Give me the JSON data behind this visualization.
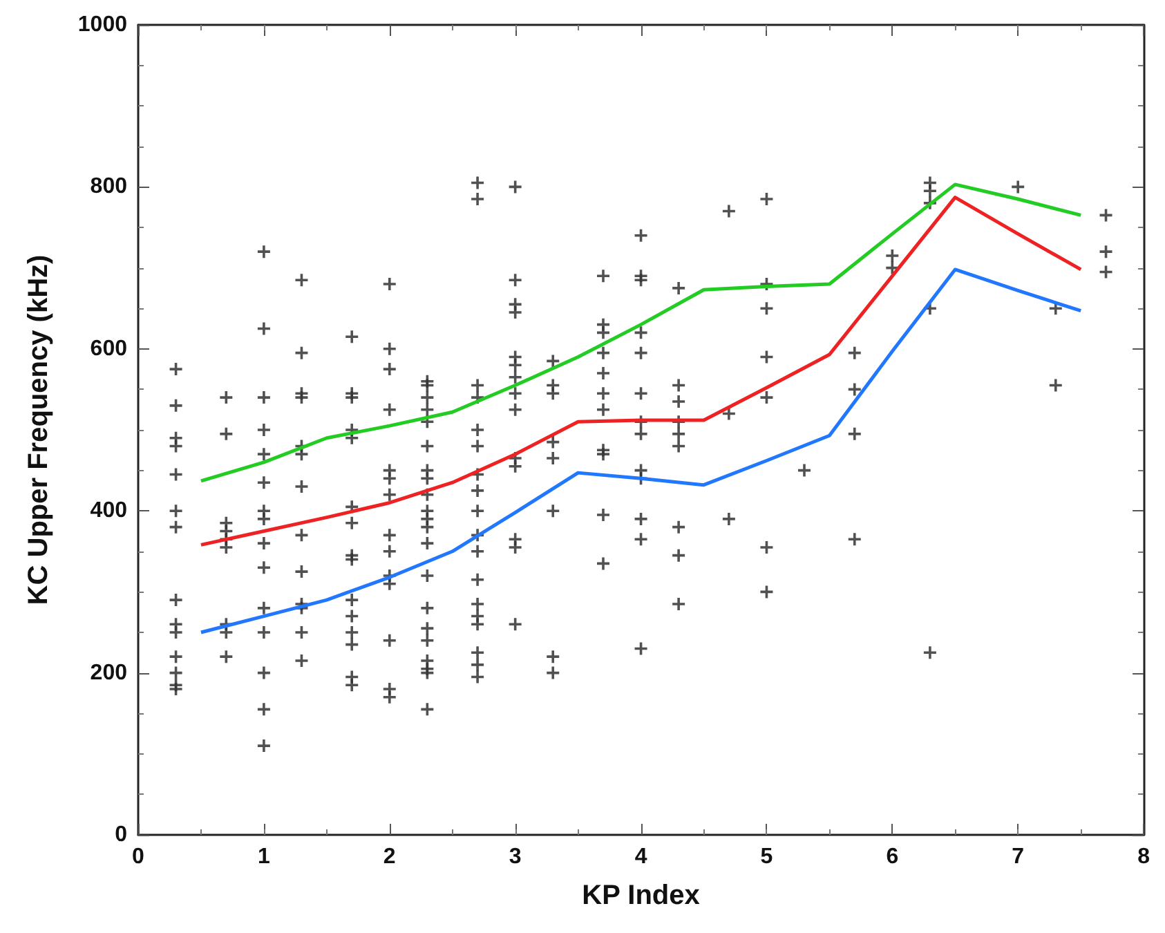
{
  "chart_data": {
    "type": "scatter",
    "xlabel": "KP Index",
    "ylabel": "KC Upper Frequency (kHz)",
    "xlim": [
      0,
      8
    ],
    "xticks": [
      0,
      1,
      2,
      3,
      4,
      5,
      6,
      7,
      8
    ],
    "ylim": [
      0,
      1000
    ],
    "yticks": [
      0,
      200,
      400,
      600,
      800,
      1000
    ],
    "grid": false,
    "series": [
      {
        "marker": "cross",
        "color": "#333333",
        "x": [
          0.3,
          0.3,
          0.3,
          0.3,
          0.3,
          0.3,
          0.3,
          0.3,
          0.3,
          0.3,
          0.3,
          0.3,
          0.3,
          0.3,
          0.7,
          0.7,
          0.7,
          0.7,
          0.7,
          0.7,
          0.7,
          0.7,
          0.7,
          1,
          1,
          1,
          1,
          1,
          1,
          1,
          1,
          1,
          1,
          1,
          1,
          1,
          1,
          1,
          1.3,
          1.3,
          1.3,
          1.3,
          1.3,
          1.3,
          1.3,
          1.3,
          1.3,
          1.3,
          1.3,
          1.3,
          1.3,
          1.7,
          1.7,
          1.7,
          1.7,
          1.7,
          1.7,
          1.7,
          1.7,
          1.7,
          1.7,
          1.7,
          1.7,
          1.7,
          1.7,
          1.7,
          2,
          2,
          2,
          2,
          2,
          2,
          2,
          2,
          2,
          2,
          2,
          2,
          2,
          2,
          2.3,
          2.3,
          2.3,
          2.3,
          2.3,
          2.3,
          2.3,
          2.3,
          2.3,
          2.3,
          2.3,
          2.3,
          2.3,
          2.3,
          2.3,
          2.3,
          2.3,
          2.3,
          2.3,
          2.3,
          2.3,
          2.7,
          2.7,
          2.7,
          2.7,
          2.7,
          2.7,
          2.7,
          2.7,
          2.7,
          2.7,
          2.7,
          2.7,
          2.7,
          2.7,
          2.7,
          2.7,
          2.7,
          2.7,
          3,
          3,
          3,
          3,
          3,
          3,
          3,
          3,
          3,
          3,
          3,
          3,
          3,
          3,
          3.3,
          3.3,
          3.3,
          3.3,
          3.3,
          3.3,
          3.3,
          3.3,
          3.7,
          3.7,
          3.7,
          3.7,
          3.7,
          3.7,
          3.7,
          3.7,
          3.7,
          3.7,
          3.7,
          4,
          4,
          4,
          4,
          4,
          4,
          4,
          4,
          4,
          4,
          4,
          4,
          4,
          4.3,
          4.3,
          4.3,
          4.3,
          4.3,
          4.3,
          4.3,
          4.3,
          4.3,
          4.7,
          4.7,
          4.7,
          5,
          5,
          5,
          5,
          5,
          5,
          5,
          5.3,
          5.7,
          5.7,
          5.7,
          5.7,
          6,
          6,
          6.3,
          6.3,
          6.3,
          6.3,
          6.3,
          7,
          7.3,
          7.3,
          7.7,
          7.7,
          7.7
        ],
        "values": [
          575,
          530,
          490,
          480,
          445,
          400,
          380,
          290,
          260,
          250,
          220,
          200,
          185,
          180,
          540,
          495,
          385,
          375,
          365,
          355,
          260,
          250,
          220,
          720,
          625,
          540,
          500,
          470,
          435,
          400,
          390,
          360,
          330,
          280,
          250,
          200,
          155,
          110,
          685,
          595,
          545,
          540,
          480,
          470,
          430,
          370,
          325,
          285,
          280,
          250,
          215,
          615,
          545,
          540,
          500,
          490,
          405,
          385,
          345,
          340,
          290,
          270,
          250,
          235,
          195,
          185,
          680,
          600,
          575,
          525,
          450,
          440,
          420,
          370,
          350,
          320,
          310,
          240,
          180,
          170,
          560,
          555,
          540,
          525,
          510,
          480,
          450,
          440,
          420,
          400,
          390,
          380,
          360,
          320,
          280,
          255,
          240,
          215,
          205,
          200,
          155,
          805,
          785,
          555,
          540,
          500,
          480,
          445,
          425,
          400,
          370,
          350,
          315,
          285,
          270,
          260,
          225,
          210,
          195,
          800,
          685,
          655,
          645,
          590,
          580,
          565,
          545,
          525,
          465,
          455,
          365,
          355,
          260,
          585,
          555,
          545,
          485,
          465,
          400,
          220,
          200,
          690,
          630,
          620,
          595,
          570,
          545,
          525,
          475,
          470,
          395,
          335,
          740,
          690,
          685,
          620,
          595,
          545,
          510,
          495,
          450,
          440,
          390,
          365,
          230,
          675,
          555,
          535,
          510,
          495,
          480,
          380,
          345,
          285,
          770,
          520,
          390,
          785,
          680,
          650,
          590,
          540,
          355,
          300,
          450,
          595,
          550,
          495,
          365,
          715,
          700,
          805,
          795,
          780,
          650,
          225,
          800,
          650,
          555,
          765,
          720,
          695
        ]
      },
      {
        "type": "line",
        "marker": "none",
        "color": "#22cc22",
        "x": [
          0.5,
          1,
          1.5,
          2,
          2.5,
          3,
          3.5,
          4,
          4.5,
          5,
          5.5,
          6,
          6.5,
          7,
          7.5
        ],
        "values": [
          437,
          460,
          490,
          505,
          522,
          555,
          590,
          630,
          673,
          677,
          680,
          742,
          803,
          785,
          765
        ]
      },
      {
        "type": "line",
        "marker": "none",
        "color": "#ee2222",
        "x": [
          0.5,
          1,
          1.5,
          2,
          2.5,
          3,
          3.5,
          4,
          4.5,
          5,
          5.5,
          6,
          6.5,
          7,
          7.5
        ],
        "values": [
          358,
          375,
          392,
          410,
          435,
          470,
          510,
          512,
          512,
          552,
          593,
          690,
          787,
          742,
          698
        ]
      },
      {
        "type": "line",
        "marker": "none",
        "color": "#2277ff",
        "x": [
          0.5,
          1,
          1.5,
          2,
          2.5,
          3,
          3.5,
          4,
          4.5,
          5,
          5.5,
          6,
          6.5,
          7,
          7.5
        ],
        "values": [
          250,
          270,
          290,
          318,
          350,
          398,
          447,
          440,
          432,
          462,
          493,
          597,
          698,
          672,
          647
        ]
      }
    ]
  }
}
